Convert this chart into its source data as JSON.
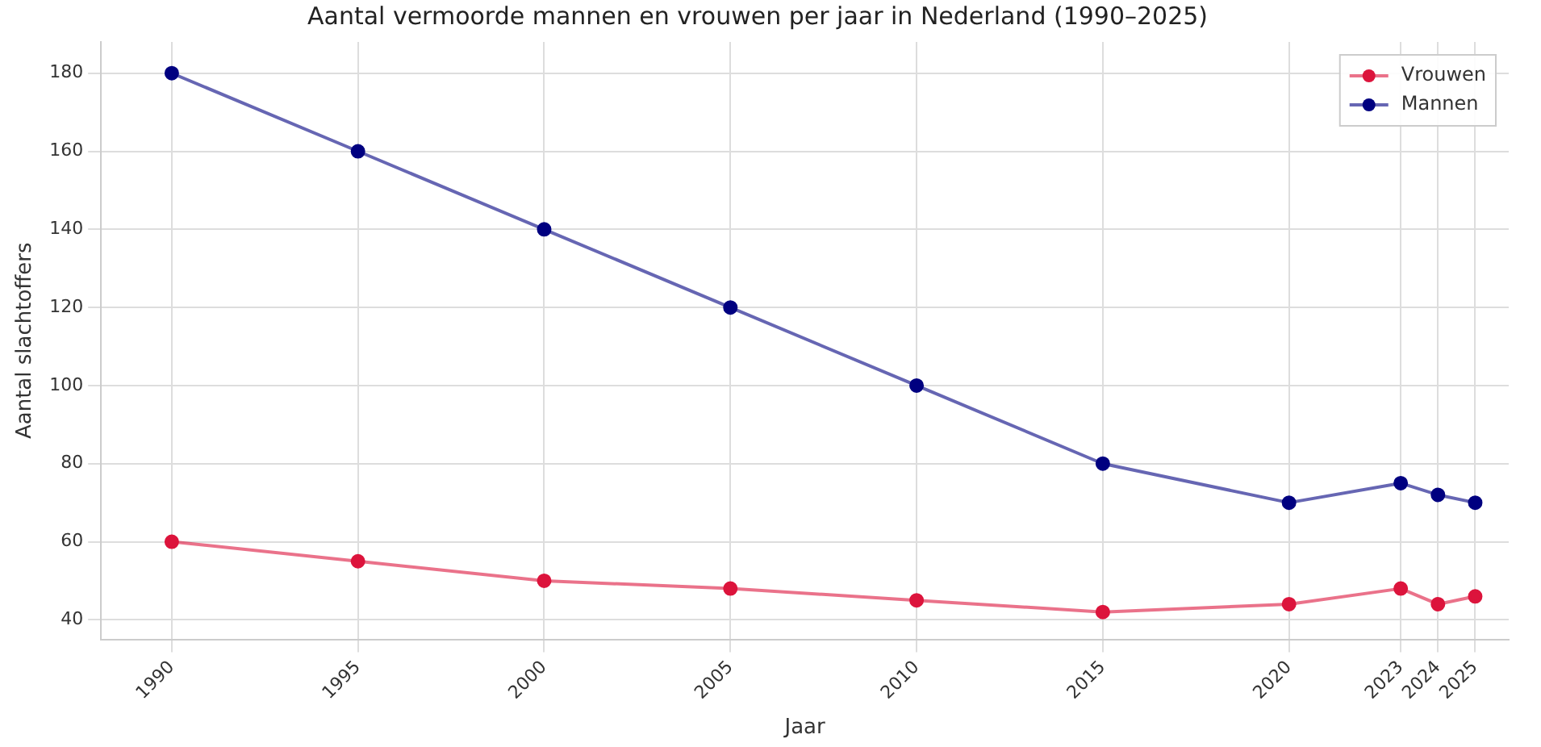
{
  "chart_data": {
    "type": "line",
    "title": "Aantal vermoorde mannen en vrouwen per jaar in Nederland (1990–2025)",
    "xlabel": "Jaar",
    "ylabel": "Aantal slachtoffers",
    "x": [
      1990,
      1995,
      2000,
      2005,
      2010,
      2015,
      2020,
      2023,
      2024,
      2025
    ],
    "series": [
      {
        "name": "Vrouwen",
        "color": "#dc143c",
        "values": [
          60,
          55,
          50,
          48,
          45,
          42,
          44,
          48,
          44,
          46
        ]
      },
      {
        "name": "Mannen",
        "color": "#000080",
        "values": [
          180,
          160,
          140,
          120,
          100,
          80,
          70,
          75,
          72,
          70
        ]
      }
    ],
    "xlim": [
      1988.1,
      2025.9
    ],
    "xticks": [
      1990,
      1995,
      2000,
      2005,
      2010,
      2015,
      2020,
      2023,
      2024,
      2025
    ],
    "ylim": [
      35,
      188
    ],
    "yticks": [
      40,
      60,
      80,
      100,
      120,
      140,
      160,
      180
    ],
    "grid": true,
    "legend": "top right",
    "marker": "circle",
    "line_style": "solid"
  }
}
